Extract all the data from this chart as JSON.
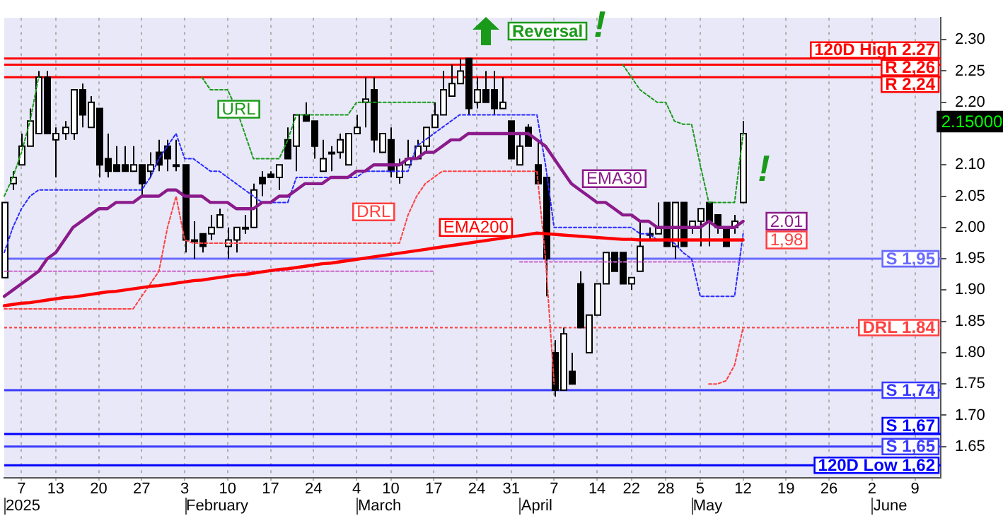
{
  "chart_data": {
    "type": "candlestick",
    "grid": "x",
    "categories": [
      null,
      null,
      "7",
      null,
      null,
      null,
      "13",
      null,
      null,
      null,
      null,
      "20",
      null,
      null,
      null,
      null,
      "27",
      null,
      null,
      null,
      null,
      "3",
      null,
      null,
      null,
      null,
      "10",
      null,
      null,
      null,
      null,
      "17",
      null,
      null,
      null,
      null,
      "24",
      null,
      null,
      null,
      null,
      "4",
      null,
      null,
      null,
      "10",
      null,
      null,
      null,
      null,
      "17",
      null,
      null,
      null,
      null,
      "24",
      null,
      null,
      null,
      "31",
      null,
      null,
      null,
      null,
      "7",
      null,
      null,
      null,
      null,
      "14",
      null,
      null,
      null,
      "22",
      null,
      null,
      null,
      "28",
      null,
      null,
      null,
      "5",
      null,
      null,
      null,
      null,
      "12",
      null,
      null,
      null,
      null,
      "19",
      null,
      null,
      null,
      null,
      "26",
      null,
      null,
      null,
      null,
      "2",
      null,
      null,
      null,
      null,
      "9",
      null,
      null,
      null
    ],
    "ohlc": [
      [
        1.92,
        2.04,
        1.92,
        2.04
      ],
      [
        2.07,
        2.09,
        2.06,
        2.08
      ],
      [
        2.1,
        2.15,
        2.1,
        2.13
      ],
      [
        2.13,
        2.19,
        2.13,
        2.17
      ],
      [
        2.15,
        2.25,
        2.15,
        2.24
      ],
      [
        2.24,
        2.25,
        2.15,
        2.15
      ],
      [
        2.14,
        2.16,
        2.08,
        2.15
      ],
      [
        2.15,
        2.17,
        2.14,
        2.16
      ],
      [
        2.15,
        2.22,
        2.14,
        2.22
      ],
      [
        2.22,
        2.23,
        2.16,
        2.18
      ],
      [
        2.16,
        2.21,
        2.16,
        2.2
      ],
      [
        2.19,
        2.19,
        2.08,
        2.1
      ],
      [
        2.11,
        2.15,
        2.08,
        2.09
      ],
      [
        2.1,
        2.13,
        2.09,
        2.09
      ],
      [
        2.1,
        2.13,
        2.09,
        2.09
      ],
      [
        2.09,
        2.13,
        2.09,
        2.1
      ],
      [
        2.1,
        2.1,
        2.05,
        2.07
      ],
      [
        2.09,
        2.12,
        2.08,
        2.1
      ],
      [
        2.12,
        2.14,
        2.09,
        2.1
      ],
      [
        2.13,
        2.14,
        2.09,
        2.11
      ],
      [
        2.1,
        2.14,
        2.09,
        2.1
      ],
      [
        2.1,
        2.1,
        1.96,
        1.98
      ],
      [
        1.98,
        2.01,
        1.95,
        1.98
      ],
      [
        1.99,
        1.99,
        1.96,
        1.97
      ],
      [
        1.99,
        2.02,
        1.98,
        2.0
      ],
      [
        2.0,
        2.03,
        2.0,
        2.02
      ],
      [
        1.97,
        2.0,
        1.95,
        1.98
      ],
      [
        1.98,
        2.0,
        1.96,
        2.0
      ],
      [
        2.0,
        2.02,
        1.99,
        2.0
      ],
      [
        2.0,
        2.07,
        2.0,
        2.06
      ],
      [
        2.08,
        2.09,
        2.05,
        2.07
      ],
      [
        2.085,
        2.09,
        2.08,
        2.08
      ],
      [
        2.08,
        2.1,
        2.06,
        2.1
      ],
      [
        2.14,
        2.16,
        2.11,
        2.11
      ],
      [
        2.13,
        2.18,
        2.09,
        2.18
      ],
      [
        2.18,
        2.2,
        2.17,
        2.17
      ],
      [
        2.17,
        2.17,
        2.11,
        2.13
      ],
      [
        2.09,
        2.14,
        2.09,
        2.11
      ],
      [
        2.12,
        2.13,
        2.09,
        2.12
      ],
      [
        2.12,
        2.15,
        2.11,
        2.14
      ],
      [
        2.1,
        2.15,
        2.1,
        2.15
      ],
      [
        2.15,
        2.18,
        2.15,
        2.16
      ],
      [
        2.2,
        2.24,
        2.16,
        2.205
      ],
      [
        2.22,
        2.24,
        2.12,
        2.14
      ],
      [
        2.12,
        2.15,
        2.12,
        2.15
      ],
      [
        2.14,
        2.16,
        2.08,
        2.09
      ],
      [
        2.08,
        2.11,
        2.07,
        2.1
      ],
      [
        2.1,
        2.14,
        2.1,
        2.11
      ],
      [
        2.11,
        2.14,
        2.11,
        2.13
      ],
      [
        2.13,
        2.16,
        2.12,
        2.16
      ],
      [
        2.16,
        2.2,
        2.16,
        2.18
      ],
      [
        2.18,
        2.25,
        2.18,
        2.22
      ],
      [
        2.21,
        2.26,
        2.21,
        2.23
      ],
      [
        2.23,
        2.27,
        2.23,
        2.25
      ],
      [
        2.27,
        2.27,
        2.18,
        2.19
      ],
      [
        2.2,
        2.24,
        2.19,
        2.22
      ],
      [
        2.22,
        2.25,
        2.2,
        2.2
      ],
      [
        2.22,
        2.25,
        2.18,
        2.19
      ],
      [
        2.19,
        2.24,
        2.19,
        2.2
      ],
      [
        2.17,
        2.17,
        2.11,
        2.11
      ],
      [
        2.1,
        2.15,
        2.1,
        2.13
      ],
      [
        2.16,
        2.165,
        2.13,
        2.13
      ],
      [
        2.1,
        2.14,
        2.07,
        2.07
      ],
      [
        2.08,
        2.08,
        1.89,
        1.95
      ],
      [
        1.8,
        1.82,
        1.73,
        1.74
      ],
      [
        1.74,
        1.84,
        1.74,
        1.83
      ],
      [
        1.77,
        1.8,
        1.75,
        1.75
      ],
      [
        1.91,
        1.93,
        1.84,
        1.84
      ],
      [
        1.8,
        1.86,
        1.8,
        1.86
      ],
      [
        1.86,
        1.91,
        1.86,
        1.91
      ],
      [
        1.91,
        1.96,
        1.91,
        1.96
      ],
      [
        1.96,
        1.96,
        1.93,
        1.93
      ],
      [
        1.96,
        1.96,
        1.91,
        1.91
      ],
      [
        1.91,
        1.92,
        1.9,
        1.92
      ],
      [
        1.93,
        2.01,
        1.93,
        1.97
      ],
      [
        1.99,
        2.0,
        1.98,
        1.99
      ],
      [
        1.99,
        2.04,
        1.99,
        2.0
      ],
      [
        2.04,
        2.04,
        1.97,
        1.97
      ],
      [
        1.97,
        2.04,
        1.95,
        2.04
      ],
      [
        2.04,
        2.04,
        1.97,
        1.97
      ],
      [
        2.0,
        2.01,
        1.99,
        2.01
      ],
      [
        2.01,
        2.03,
        1.97,
        2.03
      ],
      [
        2.04,
        2.04,
        1.97,
        2.01
      ],
      [
        2.02,
        2.02,
        1.99,
        2.0
      ],
      [
        2.0,
        2.0,
        1.97,
        1.97
      ],
      [
        2.0,
        2.02,
        1.99,
        2.01
      ],
      [
        2.04,
        2.17,
        2.04,
        2.15
      ],
      null,
      null,
      null,
      null,
      null,
      null,
      null,
      null,
      null,
      null,
      null,
      null,
      null,
      null,
      null,
      null,
      null,
      null,
      null,
      null,
      null,
      null,
      null
    ],
    "series": [
      {
        "type": "line",
        "name": "EMA30",
        "color": "#8b1a8b",
        "line_style": "solid",
        "values": [
          1.89,
          1.9,
          1.91,
          1.92,
          1.93,
          1.95,
          1.96,
          1.98,
          2.0,
          2.01,
          2.02,
          2.03,
          2.03,
          2.04,
          2.04,
          2.04,
          2.05,
          2.05,
          2.05,
          2.06,
          2.06,
          2.05,
          2.05,
          2.05,
          2.04,
          2.04,
          2.04,
          2.03,
          2.03,
          2.03,
          2.04,
          2.04,
          2.05,
          2.05,
          2.06,
          2.07,
          2.07,
          2.07,
          2.08,
          2.08,
          2.08,
          2.09,
          2.09,
          2.1,
          2.1,
          2.1,
          2.1,
          2.11,
          2.11,
          2.12,
          2.12,
          2.13,
          2.14,
          2.14,
          2.15,
          2.15,
          2.15,
          2.15,
          2.15,
          2.15,
          2.15,
          2.15,
          2.14,
          2.13,
          2.11,
          2.09,
          2.07,
          2.06,
          2.05,
          2.04,
          2.04,
          2.03,
          2.02,
          2.02,
          2.01,
          2.01,
          2.0,
          2.0,
          2.0,
          2.0,
          2.0,
          2.0,
          2.01,
          2.0,
          2.0,
          2.0,
          2.01,
          null,
          null,
          null,
          null,
          null,
          null,
          null,
          null,
          null,
          null,
          null,
          null,
          null,
          null,
          null,
          null,
          null,
          null,
          null,
          null,
          null,
          null,
          null
        ]
      },
      {
        "type": "line",
        "name": "EMA200",
        "color": "#ff0000",
        "line_style": "solid",
        "values": [
          1.875,
          1.877,
          1.879,
          1.88,
          1.882,
          1.884,
          1.886,
          1.888,
          1.889,
          1.891,
          1.893,
          1.895,
          1.897,
          1.898,
          1.9,
          1.902,
          1.904,
          1.906,
          1.907,
          1.909,
          1.911,
          1.913,
          1.915,
          1.916,
          1.918,
          1.92,
          1.922,
          1.924,
          1.925,
          1.927,
          1.929,
          1.931,
          1.933,
          1.934,
          1.936,
          1.938,
          1.94,
          1.942,
          1.943,
          1.945,
          1.947,
          1.949,
          1.951,
          1.953,
          1.955,
          1.957,
          1.959,
          1.961,
          1.963,
          1.965,
          1.967,
          1.969,
          1.971,
          1.973,
          1.975,
          1.977,
          1.979,
          1.981,
          1.983,
          1.985,
          1.987,
          1.989,
          1.991,
          1.99,
          1.989,
          1.988,
          1.987,
          1.986,
          1.985,
          1.984,
          1.983,
          1.982,
          1.981,
          1.981,
          1.98,
          1.98,
          1.98,
          1.98,
          1.98,
          1.98,
          1.98,
          1.98,
          1.98,
          1.98,
          1.98,
          1.98,
          1.98,
          null,
          null,
          null,
          null,
          null,
          null,
          null,
          null,
          null,
          null,
          null,
          null,
          null,
          null,
          null,
          null,
          null,
          null,
          null,
          null,
          null,
          null,
          null
        ]
      },
      {
        "type": "line",
        "name": "URL",
        "color": "#1a9a1a",
        "line_style": "dotted",
        "values": [
          2.05,
          2.08,
          2.12,
          2.17,
          2.24,
          null,
          null,
          null,
          null,
          null,
          null,
          null,
          null,
          null,
          null,
          null,
          null,
          null,
          null,
          null,
          null,
          null,
          null,
          2.24,
          2.22,
          2.22,
          2.22,
          2.19,
          2.15,
          2.11,
          2.11,
          2.11,
          2.11,
          2.14,
          2.18,
          2.18,
          2.18,
          2.18,
          2.18,
          2.18,
          2.18,
          2.2,
          2.2,
          2.2,
          2.2,
          2.2,
          2.2,
          2.2,
          2.2,
          2.2,
          2.2,
          null,
          null,
          null,
          null,
          null,
          null,
          null,
          null,
          null,
          null,
          null,
          null,
          null,
          null,
          null,
          null,
          null,
          null,
          null,
          null,
          null,
          2.26,
          2.24,
          2.22,
          2.21,
          2.2,
          2.2,
          2.17,
          2.165,
          2.165,
          2.1,
          2.04,
          2.04,
          2.04,
          2.04,
          2.15,
          null,
          null,
          null,
          null,
          null,
          null,
          null,
          null,
          null,
          null,
          null,
          null,
          null,
          null,
          null,
          null,
          null,
          null,
          null,
          null,
          null,
          null,
          null
        ]
      },
      {
        "type": "line",
        "name": "DRL",
        "color": "#ff4040",
        "line_style": "dotted",
        "values": [
          1.87,
          1.87,
          1.87,
          1.87,
          1.87,
          1.87,
          1.87,
          1.87,
          1.87,
          1.87,
          1.87,
          1.87,
          1.87,
          1.87,
          1.87,
          1.87,
          1.89,
          1.91,
          1.93,
          2.0,
          2.05,
          1.98,
          1.975,
          1.975,
          1.975,
          1.975,
          1.975,
          1.975,
          1.975,
          1.975,
          1.975,
          1.975,
          1.975,
          1.975,
          1.975,
          1.975,
          1.975,
          1.975,
          1.975,
          1.975,
          1.975,
          1.975,
          1.975,
          1.975,
          1.975,
          1.975,
          1.975,
          2.02,
          2.05,
          2.07,
          2.08,
          2.09,
          2.09,
          2.09,
          2.09,
          2.09,
          2.09,
          2.09,
          2.09,
          2.09,
          2.09,
          2.09,
          2.09,
          1.95,
          1.75,
          null,
          null,
          null,
          null,
          null,
          null,
          null,
          null,
          null,
          null,
          null,
          null,
          null,
          null,
          null,
          null,
          null,
          1.75,
          1.75,
          1.755,
          1.78,
          1.84,
          null,
          null,
          null,
          null,
          null,
          null,
          null,
          null,
          null,
          null,
          null,
          null,
          null,
          null,
          null,
          null,
          null,
          null,
          null,
          null,
          null,
          null,
          null
        ]
      },
      {
        "type": "line",
        "color": "#2a2aff",
        "line_style": "dotted",
        "values": [
          1.96,
          2.0,
          2.03,
          2.05,
          2.06,
          2.06,
          2.06,
          2.06,
          2.06,
          2.06,
          2.06,
          2.06,
          2.06,
          2.06,
          2.06,
          2.06,
          2.06,
          2.08,
          2.11,
          2.13,
          2.15,
          2.11,
          2.11,
          2.1,
          2.09,
          2.09,
          2.08,
          2.07,
          2.06,
          2.05,
          2.04,
          2.04,
          2.04,
          2.04,
          2.08,
          2.08,
          2.08,
          2.08,
          2.08,
          2.08,
          2.08,
          2.08,
          2.09,
          2.09,
          2.09,
          2.09,
          2.09,
          2.09,
          2.13,
          2.14,
          2.15,
          2.16,
          2.17,
          2.18,
          2.18,
          2.18,
          2.18,
          2.18,
          2.18,
          2.18,
          2.18,
          2.18,
          2.18,
          2.1,
          2.0,
          2.0,
          2.0,
          2.0,
          2.0,
          2.0,
          2.0,
          2.0,
          2.0,
          2.0,
          1.99,
          1.99,
          1.98,
          1.98,
          1.975,
          1.96,
          1.95,
          1.89,
          1.89,
          1.89,
          1.89,
          1.89,
          1.99,
          null,
          null,
          null,
          null,
          null,
          null,
          null,
          null,
          null,
          null,
          null,
          null,
          null,
          null,
          null,
          null,
          null,
          null,
          null,
          null,
          null,
          null,
          null
        ]
      },
      {
        "type": "line",
        "color": "#cc66cc",
        "line_style": "dotted",
        "values": [
          1.93,
          1.93,
          1.93,
          1.93,
          1.93,
          1.93,
          1.93,
          1.93,
          1.93,
          1.93,
          1.93,
          1.93,
          1.93,
          1.93,
          1.93,
          1.93,
          1.93,
          1.93,
          1.93,
          1.93,
          1.93,
          1.93,
          1.93,
          1.93,
          1.93,
          1.93,
          1.93,
          1.93,
          1.93,
          1.93,
          1.93,
          1.93,
          1.93,
          1.93,
          1.93,
          1.93,
          1.93,
          1.93,
          1.93,
          1.93,
          1.93,
          1.93,
          1.93,
          1.93,
          1.93,
          1.93,
          1.93,
          1.93,
          1.93,
          1.93,
          1.93,
          null,
          null,
          null,
          null,
          null,
          null,
          null,
          null,
          null,
          1.945,
          1.945,
          1.945,
          1.945,
          1.945,
          1.945,
          1.945,
          1.945,
          1.945,
          1.945,
          1.945,
          1.945,
          1.945,
          1.945,
          1.945,
          1.945,
          1.945,
          1.945,
          1.945,
          1.945,
          1.945,
          1.945,
          1.945,
          1.945,
          1.945,
          1.945,
          1.945,
          null,
          null,
          null,
          null,
          null,
          null,
          null,
          null,
          null,
          null,
          null,
          null,
          null,
          null,
          null,
          null,
          null,
          null,
          null,
          null,
          null,
          null,
          null
        ]
      }
    ],
    "ylim": [
      1.6,
      2.335
    ],
    "yticks": [
      {
        "value": 1.65,
        "label": "1.65"
      },
      {
        "value": 1.7,
        "label": "1.70"
      },
      1.75,
      {
        "value": 1.8,
        "label": "1.80"
      },
      1.85,
      {
        "value": 1.9,
        "label": "1.90"
      },
      1.95,
      {
        "value": 2,
        "label": "2.00"
      },
      2.05,
      {
        "value": 2.1,
        "label": "2.10"
      },
      {
        "value": 2.2,
        "label": "2.20"
      },
      2.25,
      {
        "value": 2.3,
        "label": "2.30"
      }
    ],
    "ref_lines": [
      {
        "axis": "y",
        "value": 2.27,
        "label": "120D High 2.27",
        "color": "#ff0000"
      },
      {
        "axis": "y",
        "value": 2.26,
        "label": "R 2,26",
        "color": "#ff0000"
      },
      {
        "axis": "y",
        "value": 2.24,
        "label": "R 2,24",
        "color": "#ff0000"
      },
      {
        "axis": "y",
        "value": 1.95,
        "label": "S 1,95",
        "color": "#6a6aff"
      },
      {
        "axis": "y",
        "value": 1.84,
        "label": "DRL 1.84",
        "color": "#ff4040",
        "line_style": "dotted"
      },
      {
        "axis": "y",
        "value": 1.74,
        "label": "S 1,74",
        "color": "#3a3aff"
      },
      {
        "axis": "y",
        "value": 1.67,
        "label": "S 1,67",
        "color": "#0000ff"
      },
      {
        "axis": "y",
        "value": 1.65,
        "label": "S 1,65",
        "color": "#3a3aff"
      },
      {
        "axis": "y",
        "value": 1.62,
        "label": "120D Low 1,62",
        "color": "#0000ff"
      }
    ],
    "annotations": [
      "Reversal",
      "!",
      "!",
      {
        "text": "2.01",
        "y": 2.01
      },
      {
        "text": "1,98",
        "y": 1.98
      },
      "2.15000",
      "2025",
      "February",
      "March",
      "April",
      "May",
      "June"
    ]
  }
}
